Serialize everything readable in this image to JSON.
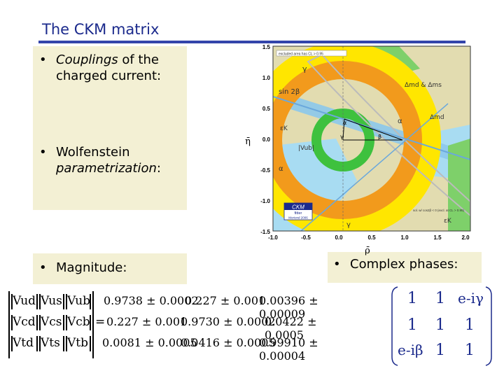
{
  "slide": {
    "title": "The CKM matrix"
  },
  "bullets": {
    "couplings_italic": "Couplings",
    "couplings_rest": " of the",
    "couplings_line2": "charged current:",
    "wolfenstein_line1": "Wolfenstein",
    "wolfenstein_italic": "parametrization",
    "wolfenstein_colon": ":",
    "magnitude": "Magnitude:",
    "phases": "Complex phases:",
    "bullet_char": "•"
  },
  "plot": {
    "y_ticks": [
      "1.5",
      "1.0",
      "0.5",
      "0.0",
      "-0.5",
      "-1.0",
      "-1.5"
    ],
    "x_ticks": [
      "-1.0",
      "-0.5",
      "0.0",
      "0.5",
      "1.0",
      "1.5",
      "2.0"
    ],
    "x_label": "ρ̄",
    "y_label": "η̄",
    "legend_top": "excluded area has CL > 0.95",
    "labels": {
      "gamma_top": "γ",
      "sin2beta": "sin 2β",
      "dmd_dms": "Δmd & Δms",
      "dmd": "Δmd",
      "alpha_right": "α",
      "alpha_left": "α",
      "eps_k_top": "εK",
      "eps_k_bottom": "εK",
      "vub": "|Vub|",
      "gamma_small": "γ",
      "beta": "β",
      "alpha_small": "α",
      "gamma_bottom": "γ"
    },
    "ckmfitter_logo": "CKM",
    "ckmfitter_sub": "fitter",
    "ckmfitter_year": "Moriond 2006",
    "note": "sol. w/ cos2β < 0 (excl. at CL > 0.95)"
  },
  "matrix": {
    "rows": [
      [
        "Vud",
        "Vus",
        "Vub"
      ],
      [
        "Vcd",
        "Vcs",
        "Vcb"
      ],
      [
        "Vtd",
        "Vts",
        "Vtb"
      ]
    ],
    "values": [
      [
        "0.9738 ± 0.0002",
        "0.227 ± 0.001",
        "0.00396 ± 0.00009"
      ],
      [
        "0.227 ± 0.001",
        "0.9730 ± 0.0002",
        "0.0422 ± 0.0005"
      ],
      [
        "0.0081 ± 0.0005",
        "0.0416 ± 0.0005",
        "0.99910 ± 0.00004"
      ]
    ],
    "equals": "=",
    "phase_matrix": [
      [
        "1",
        "1",
        "e-iγ"
      ],
      [
        "1",
        "1",
        "1"
      ],
      [
        "e-iβ",
        "1",
        "1"
      ]
    ]
  },
  "colors": {
    "title": "#1b2a8c",
    "rule": "#3344aa",
    "box": "#f3f0d4",
    "plot_bg": "#e2dcb0",
    "yellow": "#ffe600",
    "orange": "#f29a1c",
    "green": "#3ec13e",
    "lightblue": "#9ed8f2"
  }
}
